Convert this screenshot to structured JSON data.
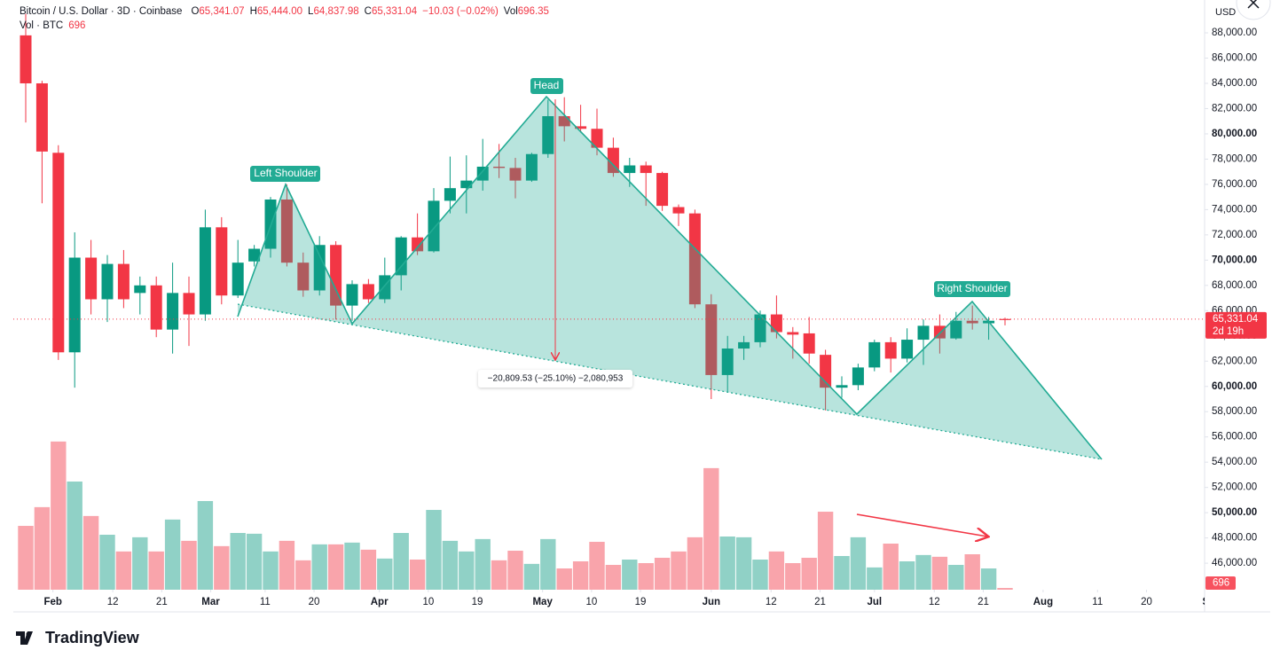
{
  "chart_data": {
    "type": "candlestick",
    "title": "Bitcoin / U.S. Dollar · 3D · Coinbase",
    "ohlc_legend": [
      {
        "key": "O",
        "value": "65,341.07"
      },
      {
        "key": "H",
        "value": "65,444.00"
      },
      {
        "key": "L",
        "value": "64,837.98"
      },
      {
        "key": "C",
        "value": "65,331.04"
      }
    ],
    "change": "−10.03 (−0.02%)",
    "volume_key": "Vol",
    "volume_value": "696.35",
    "currency": "USD",
    "x": [
      "01-27",
      "01-30",
      "02-02",
      "02-05",
      "02-08",
      "02-11",
      "02-14",
      "02-17",
      "02-20",
      "02-23",
      "02-26",
      "02-29",
      "03-03",
      "03-06",
      "03-09",
      "03-12",
      "03-15",
      "03-18",
      "03-21",
      "03-24",
      "03-27",
      "03-30",
      "04-02",
      "04-05",
      "04-08",
      "04-11",
      "04-14",
      "04-17",
      "04-20",
      "04-23",
      "04-26",
      "04-29",
      "05-02",
      "05-05",
      "05-08",
      "05-11",
      "05-14",
      "05-17",
      "05-20",
      "05-23",
      "05-26",
      "05-29",
      "06-01",
      "06-04",
      "06-07",
      "06-10",
      "06-13",
      "06-16",
      "06-19",
      "06-22",
      "06-25",
      "06-28",
      "07-01",
      "07-04",
      "07-07",
      "07-10",
      "07-13",
      "07-16",
      "07-19",
      "07-22",
      "07-25"
    ],
    "open": [
      87800,
      84000,
      78500,
      62700,
      70200,
      66900,
      69700,
      67400,
      68000,
      64500,
      67400,
      65700,
      72600,
      67200,
      69900,
      70900,
      74800,
      69800,
      67600,
      71200,
      66400,
      68100,
      66900,
      68800,
      71800,
      70700,
      74700,
      75700,
      76300,
      77400,
      77300,
      76300,
      78400,
      81400,
      80600,
      80400,
      78900,
      76900,
      77500,
      76900,
      74200,
      73700,
      66500,
      60900,
      63000,
      63500,
      65700,
      64300,
      64200,
      62500,
      59900,
      60100,
      61500,
      63500,
      62200,
      63700,
      64800,
      63800,
      65200,
      65000,
      65341.07
    ],
    "high": [
      89500,
      84200,
      79100,
      72200,
      71600,
      70400,
      70800,
      68700,
      68700,
      69800,
      68700,
      74000,
      73400,
      71600,
      71200,
      75000,
      76000,
      70600,
      71900,
      71500,
      68400,
      68500,
      70200,
      71900,
      73700,
      75700,
      78200,
      78300,
      79600,
      79200,
      78100,
      78500,
      82700,
      82900,
      82300,
      82000,
      79700,
      78100,
      77800,
      77000,
      74400,
      74000,
      67300,
      64000,
      64000,
      66000,
      67200,
      64700,
      65500,
      62900,
      60800,
      61800,
      63700,
      63900,
      64600,
      65300,
      65700,
      65900,
      66400,
      65500,
      65444
    ],
    "low": [
      80900,
      74500,
      62100,
      59900,
      65700,
      65100,
      66200,
      65700,
      63900,
      62600,
      63200,
      65200,
      66500,
      67000,
      69500,
      70200,
      69500,
      67100,
      67200,
      65300,
      65200,
      66600,
      66600,
      67600,
      70400,
      70600,
      73700,
      73700,
      75500,
      76500,
      74900,
      76200,
      78100,
      79400,
      80100,
      78300,
      76600,
      75800,
      74300,
      73900,
      72700,
      66200,
      59000,
      59500,
      62100,
      63100,
      63800,
      62200,
      61800,
      58100,
      59100,
      59700,
      61200,
      61100,
      61900,
      61700,
      62600,
      63700,
      64500,
      63700,
      64837.98
    ],
    "close": [
      84000,
      78600,
      62700,
      70200,
      66900,
      69700,
      66900,
      68000,
      64500,
      67400,
      65700,
      72600,
      67200,
      69800,
      70900,
      74800,
      69800,
      67600,
      71200,
      66400,
      68100,
      66900,
      68800,
      71800,
      70700,
      74700,
      75700,
      76300,
      77400,
      77300,
      76300,
      78400,
      81400,
      80600,
      80400,
      78900,
      76900,
      77500,
      76900,
      74300,
      73700,
      66500,
      60900,
      63000,
      63500,
      65700,
      64300,
      64100,
      62600,
      59900,
      60100,
      61500,
      63500,
      62200,
      63700,
      64800,
      63800,
      65200,
      65000,
      65200,
      65331.04
    ],
    "up_color": "#089981",
    "down_color": "#f23645",
    "last_price_label": "65,331.04",
    "countdown": "2d 19h",
    "volume": {
      "name": "Vol · BTC",
      "values": [
        25200,
        32600,
        58500,
        42700,
        29100,
        21700,
        15100,
        20700,
        15100,
        27700,
        19300,
        35000,
        17200,
        22400,
        22100,
        15100,
        19300,
        11600,
        17900,
        17900,
        18600,
        15800,
        12300,
        22400,
        11900,
        31500,
        19300,
        15100,
        20000,
        11600,
        15400,
        10200,
        20000,
        8400,
        11200,
        18900,
        9800,
        11900,
        10500,
        12600,
        15100,
        20700,
        48000,
        21000,
        20700,
        11900,
        15100,
        10500,
        12600,
        30800,
        13300,
        20700,
        8800,
        18200,
        11200,
        13700,
        13000,
        9800,
        14000,
        8400,
        696.35
      ],
      "last_label": "696",
      "ylim": [
        0,
        60000
      ]
    },
    "ylim": [
      43900,
      90600
    ],
    "yticks": [
      {
        "value": 46000,
        "label": "46,000.00"
      },
      {
        "value": 48000,
        "label": "48,000.00"
      },
      {
        "value": 50000,
        "label": "50,000.00"
      },
      {
        "value": 52000,
        "label": "52,000.00"
      },
      {
        "value": 54000,
        "label": "54,000.00"
      },
      {
        "value": 56000,
        "label": "56,000.00"
      },
      {
        "value": 58000,
        "label": "58,000.00"
      },
      {
        "value": 60000,
        "label": "60,000.00"
      },
      {
        "value": 62000,
        "label": "62,000.00"
      },
      {
        "value": 64000,
        "label": "64,000.00"
      },
      {
        "value": 66000,
        "label": "66,000.00"
      },
      {
        "value": 68000,
        "label": "68,000.00"
      },
      {
        "value": 70000,
        "label": "70,000.00"
      },
      {
        "value": 72000,
        "label": "72,000.00"
      },
      {
        "value": 74000,
        "label": "74,000.00"
      },
      {
        "value": 76000,
        "label": "76,000.00"
      },
      {
        "value": 78000,
        "label": "78,000.00"
      },
      {
        "value": 80000,
        "label": "80,000.00"
      },
      {
        "value": 82000,
        "label": "82,000.00"
      },
      {
        "value": 84000,
        "label": "84,000.00"
      },
      {
        "value": 86000,
        "label": "86,000.00"
      },
      {
        "value": 88000,
        "label": "88,000.00"
      }
    ],
    "xticks": [
      {
        "value": "02-01",
        "label": "Feb"
      },
      {
        "value": "02-12",
        "label": "12"
      },
      {
        "value": "02-21",
        "label": "21"
      },
      {
        "value": "03-01",
        "label": "Mar"
      },
      {
        "value": "03-11",
        "label": "11"
      },
      {
        "value": "03-20",
        "label": "20"
      },
      {
        "value": "04-01",
        "label": "Apr"
      },
      {
        "value": "04-10",
        "label": "10"
      },
      {
        "value": "04-19",
        "label": "19"
      },
      {
        "value": "05-01",
        "label": "May"
      },
      {
        "value": "05-10",
        "label": "10"
      },
      {
        "value": "05-19",
        "label": "19"
      },
      {
        "value": "06-01",
        "label": "Jun"
      },
      {
        "value": "06-12",
        "label": "12"
      },
      {
        "value": "06-21",
        "label": "21"
      },
      {
        "value": "07-01",
        "label": "Jul"
      },
      {
        "value": "07-12",
        "label": "12"
      },
      {
        "value": "07-21",
        "label": "21"
      },
      {
        "value": "08-01",
        "label": "Aug"
      },
      {
        "value": "08-11",
        "label": "11"
      },
      {
        "value": "08-20",
        "label": "20"
      },
      {
        "value": "09-01",
        "label": "Sep"
      }
    ],
    "annotations": [
      "Left Shoulder",
      "Head",
      "Right Shoulder",
      "−20,809.53 (−25.10%) −2,080,953"
    ]
  },
  "branding": "TradingView"
}
